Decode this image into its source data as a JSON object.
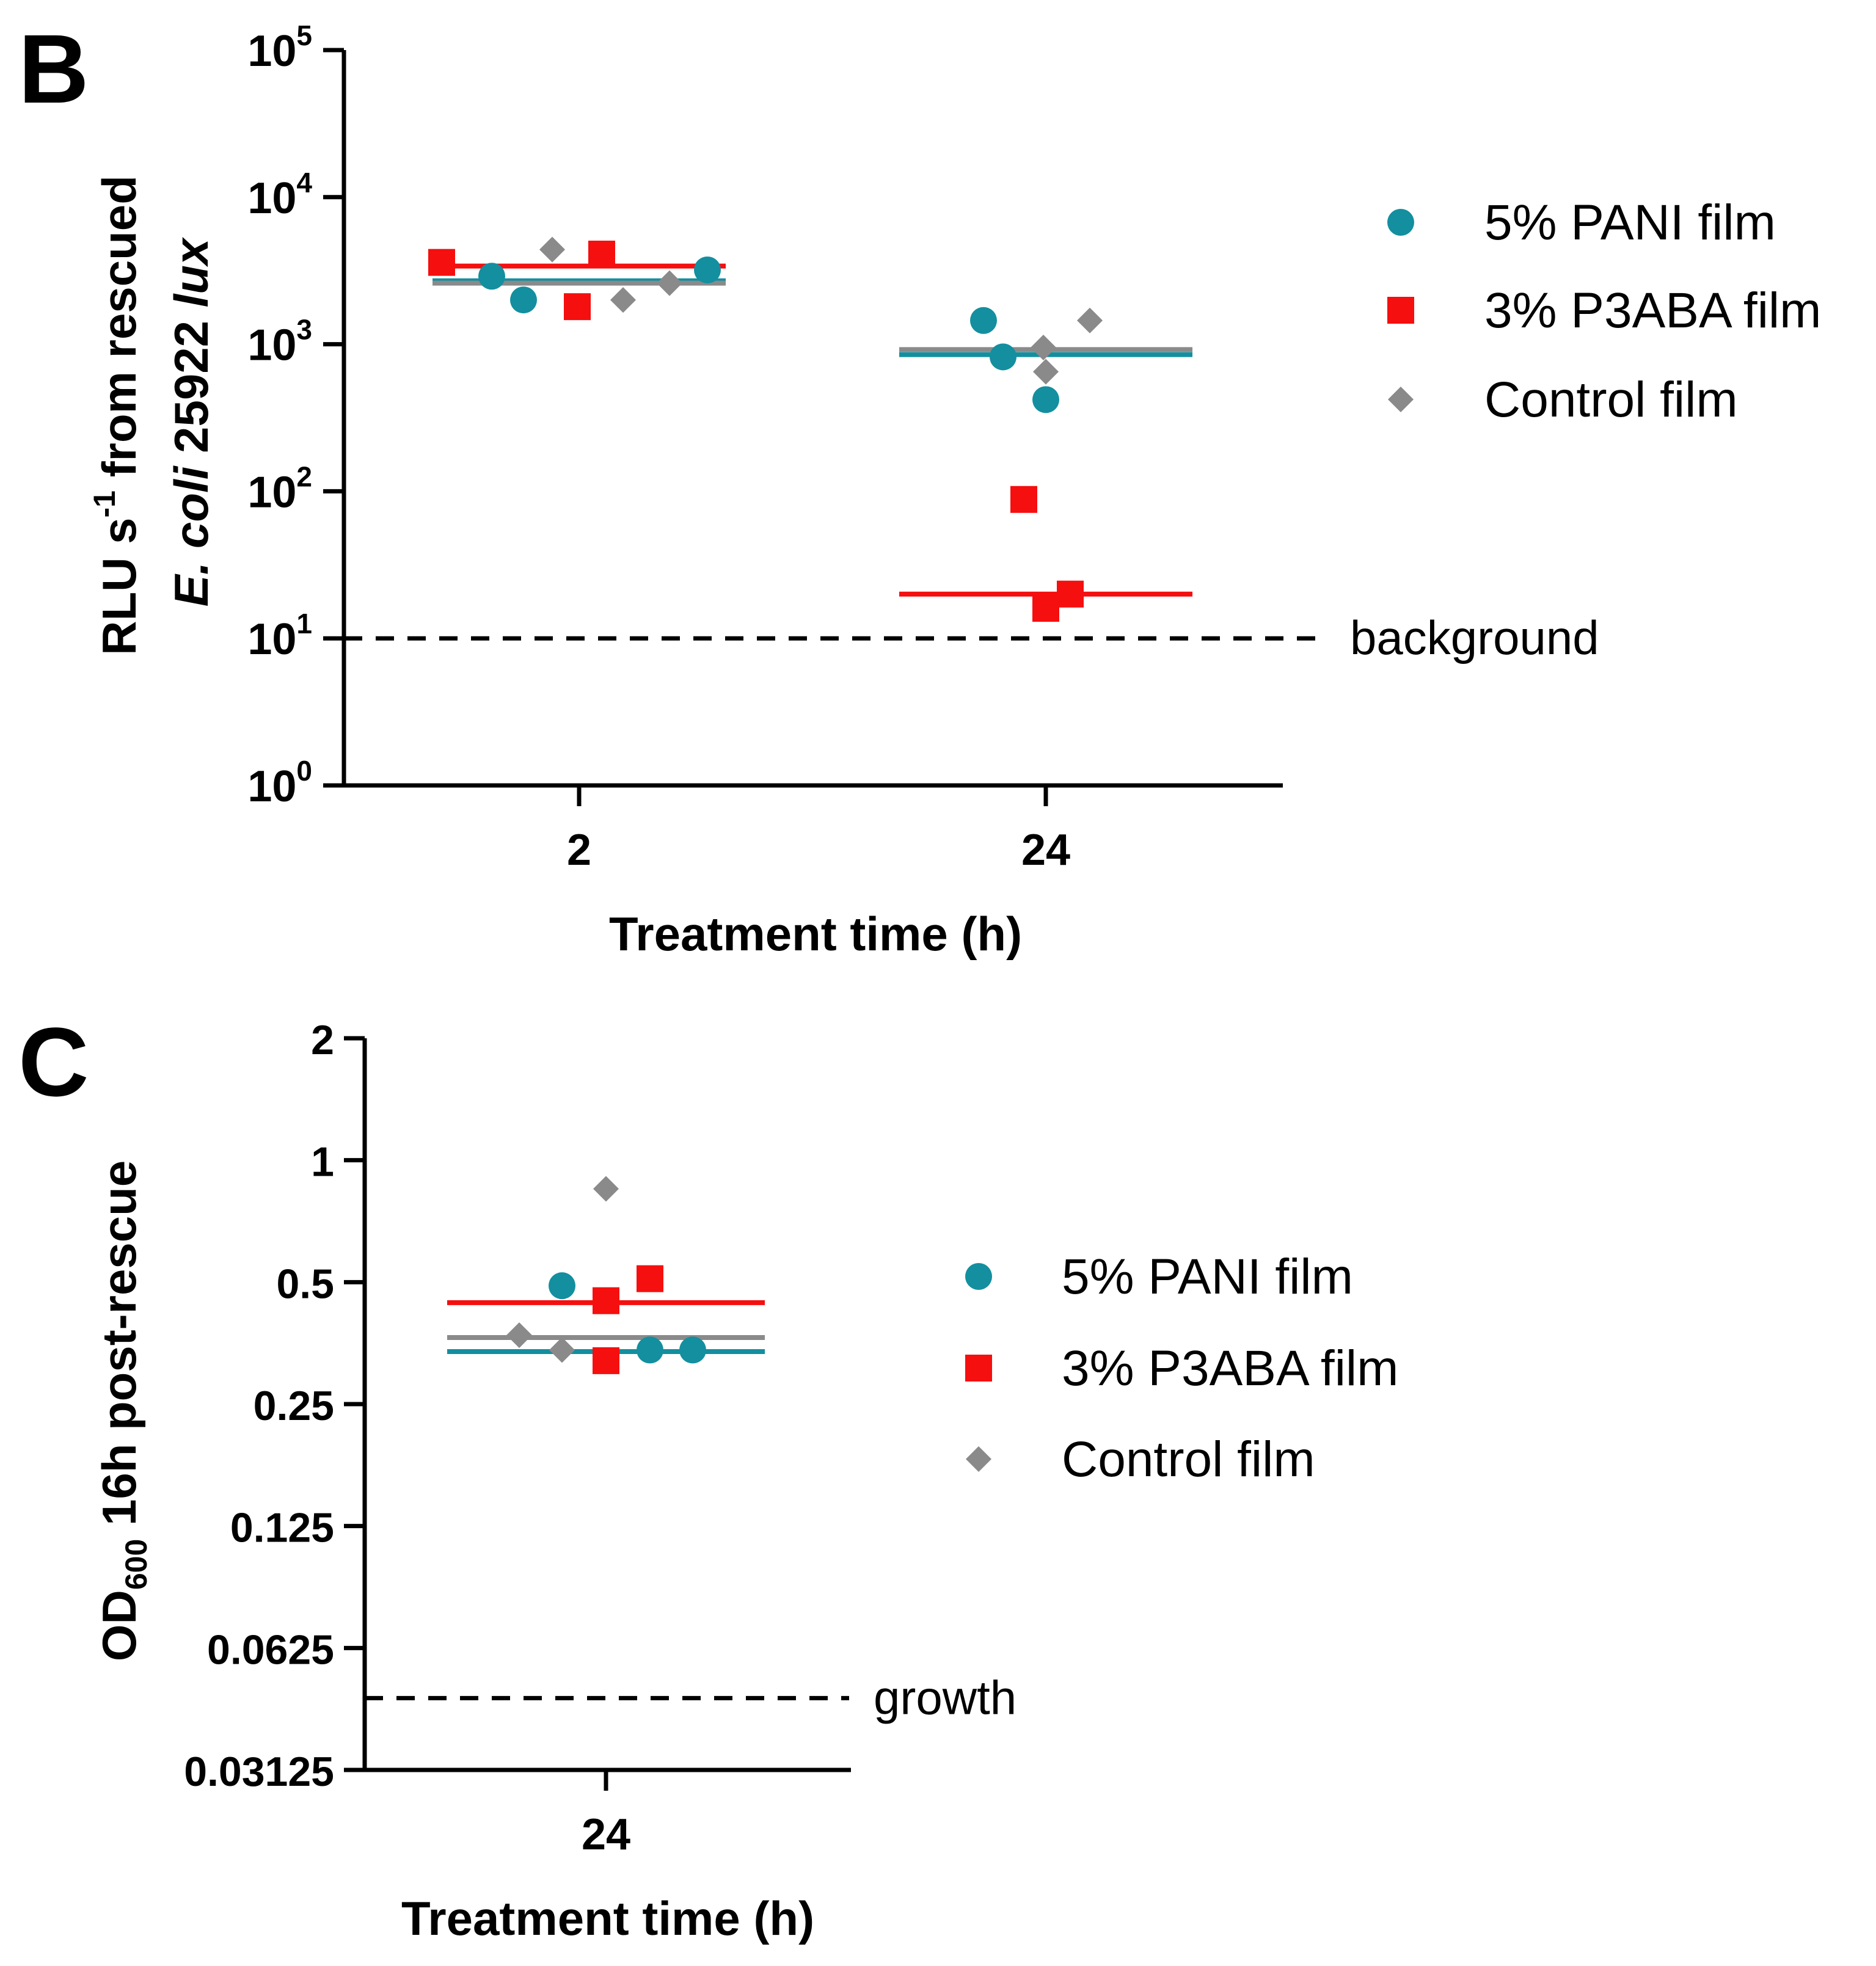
{
  "colors": {
    "pani": "#138f9f",
    "p3aba": "#f50f0f",
    "control": "#8a8a8a",
    "axis": "#000000"
  },
  "chart_data": [
    {
      "panel": "B",
      "type": "scatter",
      "scale": "log10",
      "ylim": [
        1,
        100000
      ],
      "ytick_values": [
        1,
        10,
        100,
        1000,
        10000,
        100000
      ],
      "ytick_bases": [
        "10",
        "10",
        "10",
        "10",
        "10",
        "10"
      ],
      "ytick_exps": [
        "0",
        "1",
        "2",
        "3",
        "4",
        "5"
      ],
      "categories": [
        "2",
        "24"
      ],
      "xlabel": "Treatment time (h)",
      "ylabel_line1": {
        "pre": "RLU s",
        "sup": "-1",
        "post": " from rescued"
      },
      "ylabel_line2": {
        "italic": "E. coli",
        "normal": " 25922 ",
        "italic2": "lux"
      },
      "reference_line": {
        "value": 10,
        "label": "background"
      },
      "series": [
        {
          "name": "5% PANI film",
          "marker": "circle",
          "points": [
            {
              "x": "2",
              "y": 2900
            },
            {
              "x": "2",
              "y": 2000
            },
            {
              "x": "2",
              "y": 3200
            },
            {
              "x": "24",
              "y": 1450
            },
            {
              "x": "24",
              "y": 820
            },
            {
              "x": "24",
              "y": 420
            }
          ],
          "means": [
            {
              "x": "2",
              "y": 2700
            },
            {
              "x": "24",
              "y": 850
            }
          ]
        },
        {
          "name": "3% P3ABA film",
          "marker": "square",
          "points": [
            {
              "x": "2",
              "y": 3600
            },
            {
              "x": "2",
              "y": 1800
            },
            {
              "x": "2",
              "y": 4100
            },
            {
              "x": "24",
              "y": 88
            },
            {
              "x": "24",
              "y": 16
            },
            {
              "x": "24",
              "y": 20
            }
          ],
          "means": [
            {
              "x": "2",
              "y": 3400
            },
            {
              "x": "24",
              "y": 20
            }
          ]
        },
        {
          "name": "Control film",
          "marker": "diamond",
          "points": [
            {
              "x": "2",
              "y": 4400
            },
            {
              "x": "2",
              "y": 2000
            },
            {
              "x": "2",
              "y": 2600
            },
            {
              "x": "24",
              "y": 950
            },
            {
              "x": "24",
              "y": 650
            },
            {
              "x": "24",
              "y": 1450
            }
          ],
          "means": [
            {
              "x": "2",
              "y": 2600
            },
            {
              "x": "24",
              "y": 920
            }
          ]
        }
      ]
    },
    {
      "panel": "C",
      "type": "scatter",
      "scale": "log2",
      "ylim": [
        0.03125,
        2
      ],
      "ytick_values": [
        0.03125,
        0.0625,
        0.125,
        0.25,
        0.5,
        1,
        2
      ],
      "ytick_labels": [
        "0.03125",
        "0.0625",
        "0.125",
        "0.25",
        "0.5",
        "1",
        "2"
      ],
      "categories": [
        "24"
      ],
      "xlabel": "Treatment time (h)",
      "ylabel": {
        "pre": "OD",
        "sub": "600",
        "post": " 16h post-rescue"
      },
      "reference_line": {
        "value": 0.047,
        "label": "growth"
      },
      "series": [
        {
          "name": "5% PANI film",
          "marker": "circle",
          "points": [
            {
              "x": "24",
              "y": 0.49
            },
            {
              "x": "24",
              "y": 0.34
            },
            {
              "x": "24",
              "y": 0.34
            }
          ],
          "means": [
            {
              "x": "24",
              "y": 0.337
            }
          ]
        },
        {
          "name": "3% P3ABA film",
          "marker": "square",
          "points": [
            {
              "x": "24",
              "y": 0.51
            },
            {
              "x": "24",
              "y": 0.45
            },
            {
              "x": "24",
              "y": 0.32
            }
          ],
          "means": [
            {
              "x": "24",
              "y": 0.445
            }
          ]
        },
        {
          "name": "Control film",
          "marker": "diamond",
          "points": [
            {
              "x": "24",
              "y": 0.85
            },
            {
              "x": "24",
              "y": 0.37
            },
            {
              "x": "24",
              "y": 0.34
            }
          ],
          "means": [
            {
              "x": "24",
              "y": 0.365
            }
          ]
        }
      ]
    }
  ]
}
